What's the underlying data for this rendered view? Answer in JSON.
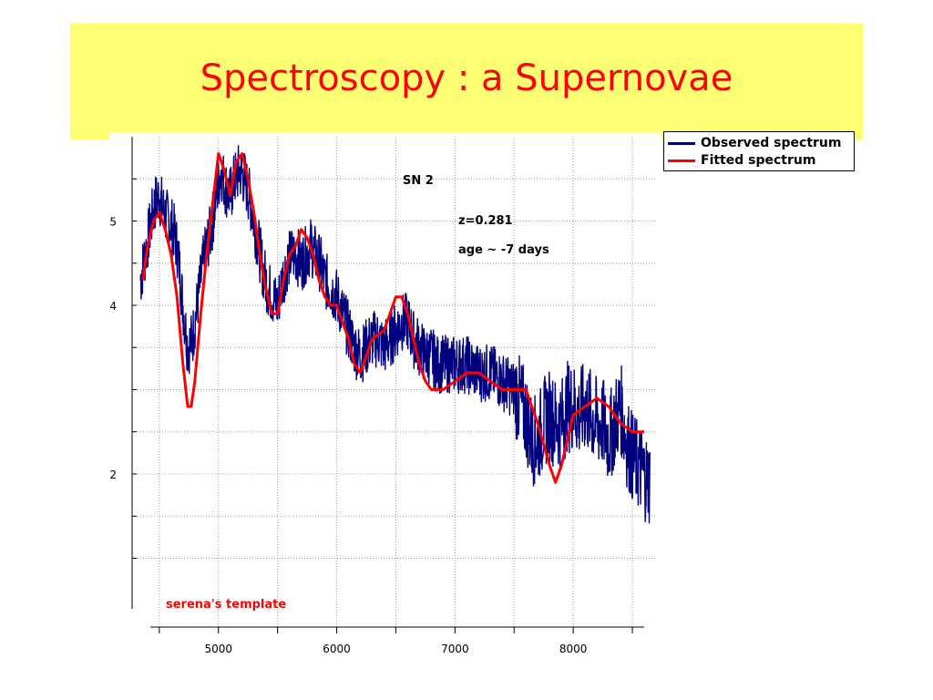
{
  "slide": {
    "title": "Spectroscopy : a Supernovae",
    "title_color": "#ff0000",
    "banner_color": "#ffff73"
  },
  "legend": {
    "items": [
      {
        "label": "Observed spectrum",
        "color": "#00007f"
      },
      {
        "label": "Fitted spectrum",
        "color": "#ff0000"
      }
    ]
  },
  "annotations": {
    "object": "SN 2",
    "redshift": "z=0.281",
    "age": "age ~ -7 days",
    "template": "serena's template",
    "template_color": "#ff0000"
  },
  "chart_data": {
    "type": "line",
    "title": "",
    "xlabel": "",
    "ylabel": "",
    "xlim": [
      4270,
      8700
    ],
    "ylim": [
      0.4,
      6.0
    ],
    "xticks": [
      5000,
      6000,
      7000,
      8000
    ],
    "yticks": [
      2,
      4,
      5
    ],
    "grid": true,
    "legend_position": "top-right",
    "series": [
      {
        "name": "Observed spectrum",
        "color": "#00007f",
        "noise": true,
        "x": [
          4340,
          4380,
          4420,
          4460,
          4500,
          4540,
          4580,
          4620,
          4660,
          4700,
          4740,
          4780,
          4820,
          4860,
          4900,
          4940,
          4980,
          5020,
          5060,
          5100,
          5140,
          5180,
          5220,
          5260,
          5300,
          5340,
          5380,
          5420,
          5460,
          5500,
          5540,
          5580,
          5620,
          5660,
          5700,
          5740,
          5780,
          5820,
          5860,
          5900,
          5950,
          6000,
          6050,
          6100,
          6150,
          6200,
          6250,
          6300,
          6350,
          6400,
          6450,
          6500,
          6550,
          6600,
          6650,
          6700,
          6750,
          6800,
          6850,
          6900,
          6950,
          7000,
          7100,
          7200,
          7300,
          7400,
          7500,
          7600,
          7650,
          7700,
          7750,
          7800,
          7850,
          7900,
          7950,
          8000,
          8050,
          8100,
          8150,
          8200,
          8250,
          8300,
          8350,
          8400,
          8450,
          8500,
          8550,
          8600,
          8650
        ],
        "y": [
          4.3,
          4.6,
          4.9,
          5.2,
          5.3,
          5.1,
          5.0,
          4.9,
          4.6,
          4.0,
          3.5,
          3.6,
          4.0,
          4.4,
          4.7,
          4.9,
          5.3,
          5.6,
          5.4,
          5.3,
          5.5,
          5.6,
          5.5,
          5.3,
          5.0,
          4.7,
          4.4,
          4.2,
          4.1,
          4.0,
          4.3,
          4.5,
          4.6,
          4.6,
          4.5,
          4.6,
          4.7,
          4.6,
          4.5,
          4.3,
          4.2,
          4.1,
          3.9,
          3.7,
          3.5,
          3.4,
          3.5,
          3.6,
          3.6,
          3.5,
          3.6,
          3.7,
          3.8,
          3.8,
          3.6,
          3.5,
          3.4,
          3.4,
          3.3,
          3.3,
          3.3,
          3.3,
          3.3,
          3.2,
          3.2,
          3.1,
          3.0,
          2.7,
          2.4,
          2.4,
          2.6,
          2.7,
          2.6,
          2.6,
          2.8,
          2.8,
          2.7,
          2.8,
          2.7,
          2.6,
          2.6,
          2.4,
          2.6,
          2.8,
          2.4,
          2.2,
          2.1,
          2.0,
          1.9
        ]
      },
      {
        "name": "Fitted spectrum",
        "color": "#ff0000",
        "noise": false,
        "x": [
          4360,
          4400,
          4450,
          4500,
          4550,
          4600,
          4650,
          4700,
          4740,
          4770,
          4800,
          4850,
          4900,
          4950,
          5000,
          5050,
          5100,
          5150,
          5200,
          5250,
          5300,
          5350,
          5400,
          5450,
          5500,
          5550,
          5600,
          5650,
          5700,
          5750,
          5800,
          5850,
          5900,
          5950,
          6000,
          6050,
          6100,
          6150,
          6200,
          6250,
          6300,
          6400,
          6500,
          6550,
          6600,
          6650,
          6700,
          6750,
          6800,
          6900,
          7000,
          7100,
          7200,
          7300,
          7400,
          7500,
          7600,
          7700,
          7800,
          7850,
          7900,
          7950,
          8000,
          8100,
          8200,
          8300,
          8400,
          8500,
          8550,
          8600
        ],
        "y": [
          4.3,
          4.7,
          5.0,
          5.1,
          4.9,
          4.6,
          4.1,
          3.3,
          2.8,
          2.8,
          3.1,
          3.9,
          4.6,
          5.2,
          5.8,
          5.6,
          5.3,
          5.7,
          5.8,
          5.5,
          5.1,
          4.6,
          4.2,
          3.9,
          3.9,
          4.3,
          4.6,
          4.7,
          4.9,
          4.8,
          4.6,
          4.3,
          4.1,
          4.0,
          4.0,
          3.8,
          3.6,
          3.3,
          3.2,
          3.4,
          3.6,
          3.7,
          4.1,
          4.1,
          3.9,
          3.6,
          3.3,
          3.1,
          3.0,
          3.0,
          3.1,
          3.2,
          3.2,
          3.1,
          3.0,
          3.0,
          3.0,
          2.6,
          2.1,
          1.9,
          2.1,
          2.4,
          2.7,
          2.8,
          2.9,
          2.8,
          2.6,
          2.5,
          2.5,
          2.5
        ]
      }
    ]
  }
}
